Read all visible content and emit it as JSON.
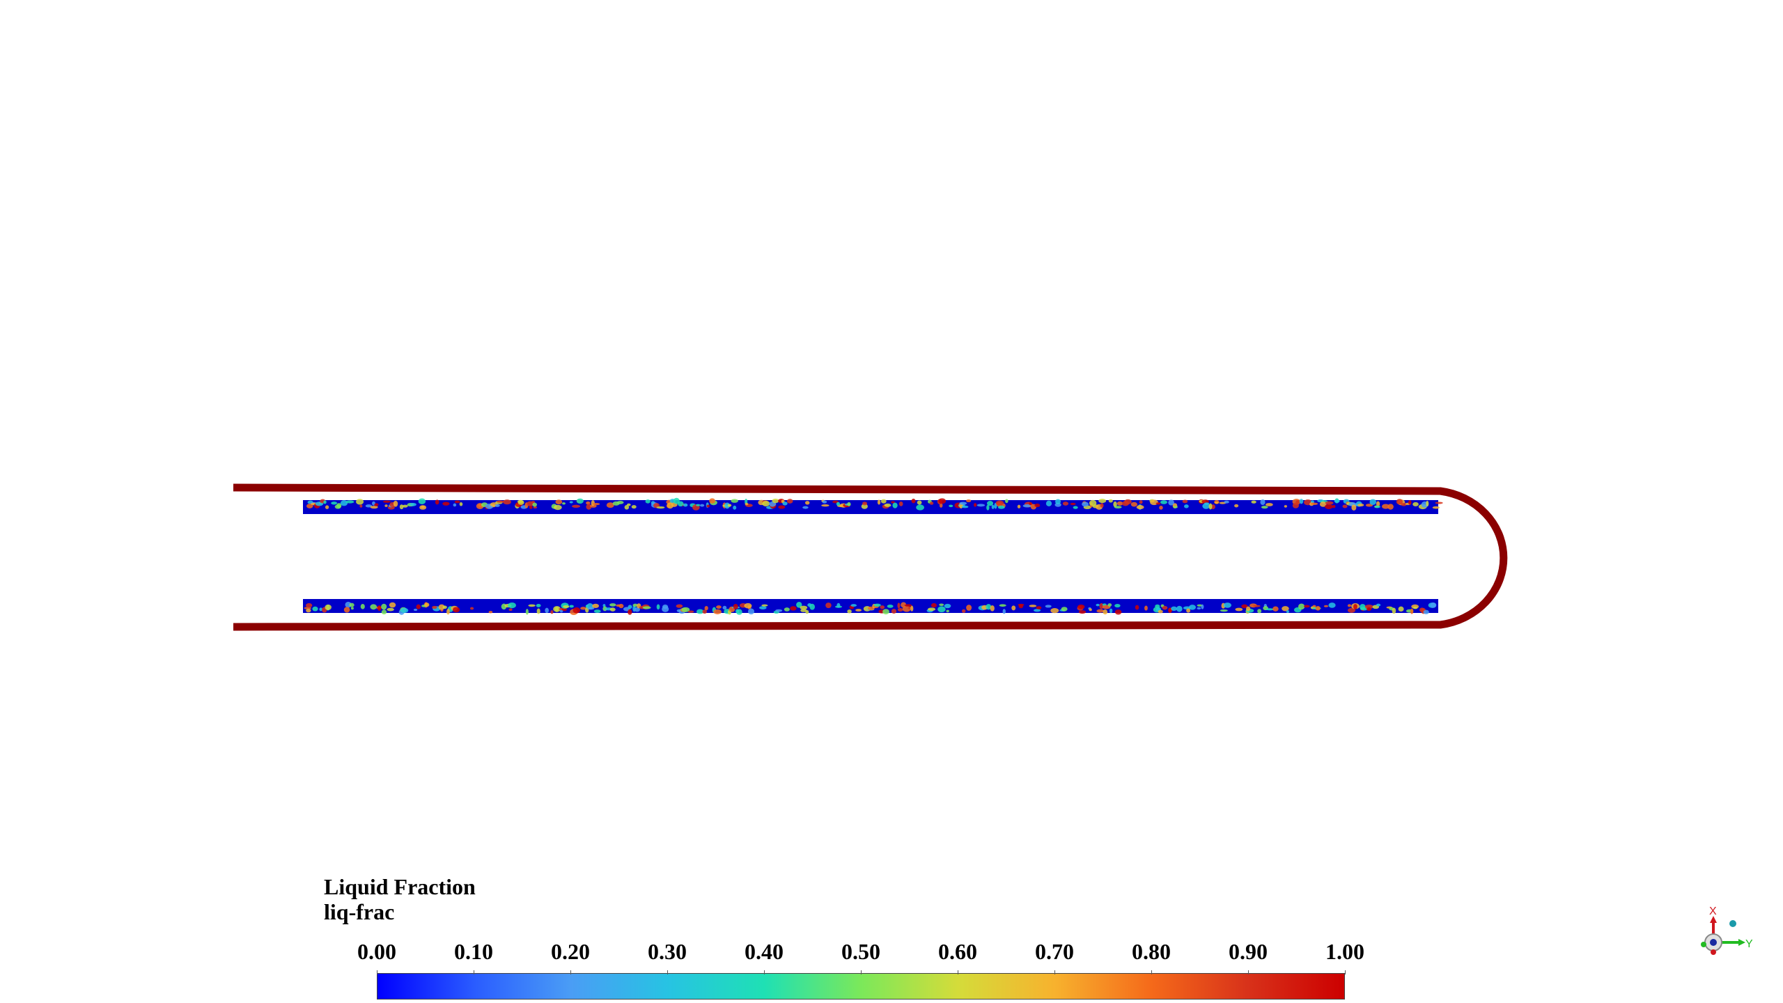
{
  "legend": {
    "title": "Liquid Fraction",
    "subtitle": "liq-frac",
    "ticks": [
      "0.00",
      "0.10",
      "0.20",
      "0.30",
      "0.40",
      "0.50",
      "0.60",
      "0.70",
      "0.80",
      "0.90",
      "1.00"
    ],
    "range": [
      0.0,
      1.0
    ],
    "colormap": [
      "#0000ff",
      "#2a5cff",
      "#4a9df5",
      "#27c3e3",
      "#1fe0b4",
      "#7be85a",
      "#d4dc3a",
      "#f7b22e",
      "#f56a1a",
      "#d8321a",
      "#cc0000"
    ]
  },
  "geometry": {
    "wall_color": "#8b0000",
    "field_background_color": "#0000c8"
  },
  "axes_triad": {
    "x_label": "X",
    "y_label": "Y",
    "x_color": "#d0161e",
    "y_color": "#22bb22",
    "z_color": "#1a9aaa"
  }
}
